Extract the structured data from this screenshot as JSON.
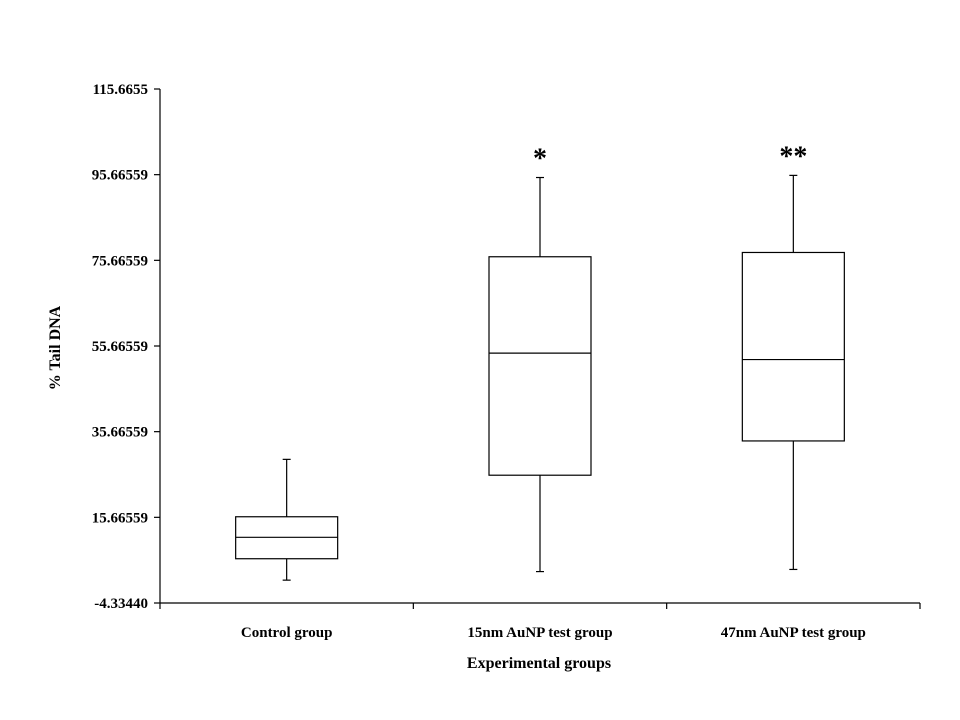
{
  "chart_data": {
    "type": "box",
    "title": "",
    "xlabel": "Experimental groups",
    "ylabel": "% Tail DNA",
    "ylim": [
      -4.3344,
      115.6655
    ],
    "yticks": [
      "115.6655",
      "95.66559",
      "75.66559",
      "55.66559",
      "35.66559",
      "15.66559",
      "-4.33440"
    ],
    "ytick_values": [
      115.6655,
      95.66559,
      75.66559,
      55.66559,
      35.66559,
      15.66559,
      -4.3344
    ],
    "categories": [
      "Control group",
      "15nm AuNP test group",
      "47nm AuNP test group"
    ],
    "boxes": [
      {
        "min": 1.0,
        "q1": 6.0,
        "median": 11.0,
        "q3": 15.8,
        "max": 29.2,
        "annotation": ""
      },
      {
        "min": 3.0,
        "q1": 25.5,
        "median": 54.0,
        "q3": 76.5,
        "max": 95.0,
        "annotation": "*"
      },
      {
        "min": 3.5,
        "q1": 33.5,
        "median": 52.5,
        "q3": 77.5,
        "max": 95.5,
        "annotation": "**"
      }
    ],
    "grid": false,
    "legend": "none"
  }
}
